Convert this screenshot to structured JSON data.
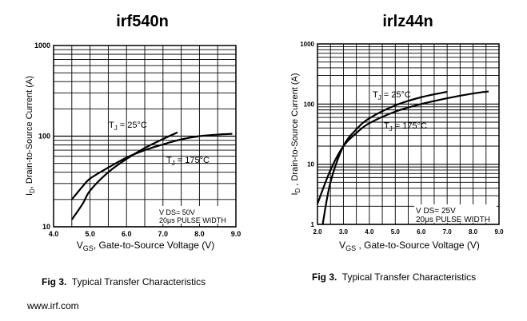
{
  "chart_data": [
    {
      "type": "line",
      "title": "irf540n",
      "xlabel_main": "V",
      "xlabel_sub": "GS",
      "xlabel_rest": ", Gate-to-Source Voltage (V)",
      "ylabel_main": "I",
      "ylabel_sub": "D",
      "ylabel_rest": ",  Drain-to-Source Current (A)",
      "x_scale": "linear",
      "y_scale": "log",
      "xlim": [
        4.0,
        9.0
      ],
      "ylim": [
        10,
        1000
      ],
      "x_ticks": [
        4.0,
        5.0,
        6.0,
        7.0,
        8.0,
        9.0
      ],
      "x_tick_labels": [
        "4.0",
        "5.0",
        "6.0",
        "7.0",
        "8.0",
        "9.0"
      ],
      "y_tick_labels": [
        "10",
        "100",
        "1000"
      ],
      "grid": true,
      "series": [
        {
          "name": "T",
          "name_sub": "J",
          "name_rest": " = 25°C",
          "x": [
            4.5,
            4.8,
            5.0,
            5.5,
            6.0,
            6.5,
            7.0,
            7.4
          ],
          "y": [
            12,
            18,
            25,
            40,
            56,
            74,
            93,
            110
          ]
        },
        {
          "name": "T",
          "name_sub": "J",
          "name_rest": " = 175°C",
          "x": [
            4.5,
            4.8,
            5.0,
            5.5,
            6.0,
            6.5,
            7.0,
            7.5,
            8.0,
            8.5,
            8.9
          ],
          "y": [
            20,
            28,
            34,
            45,
            58,
            70,
            81,
            92,
            100,
            104,
            106
          ]
        }
      ],
      "conditions": [
        "V DS= 50V",
        "20μs PULSE WIDTH"
      ],
      "caption_bold": "Fig 3.",
      "caption_text": "Typical Transfer Characteristics"
    },
    {
      "type": "line",
      "title": "irlz44n",
      "xlabel_main": "V",
      "xlabel_sub": "GS",
      "xlabel_rest": " , Gate-to-Source Voltage (V)",
      "ylabel_main": "I",
      "ylabel_sub": "D",
      "ylabel_rest": " ,  Drain-to-Source Current (A)",
      "x_scale": "linear",
      "y_scale": "log",
      "xlim": [
        2.0,
        9.0
      ],
      "ylim": [
        1,
        1000
      ],
      "x_ticks": [
        2.0,
        3.0,
        4.0,
        5.0,
        6.0,
        7.0,
        8.0,
        9.0
      ],
      "x_tick_labels": [
        "2.0",
        "3.0",
        "4.0",
        "5.0",
        "6.0",
        "7.0",
        "8.0",
        "9.0"
      ],
      "y_tick_labels": [
        "1",
        "10",
        "100",
        "1000"
      ],
      "grid": true,
      "series": [
        {
          "name": "T",
          "name_sub": "J",
          "name_rest": " = 25°C",
          "x": [
            2.2,
            2.5,
            3.0,
            3.5,
            4.0,
            5.0,
            6.0,
            7.0
          ],
          "y": [
            1,
            5,
            20,
            38,
            58,
            95,
            130,
            160
          ]
        },
        {
          "name": "T",
          "name_sub": "J",
          "name_rest": " = 175°C",
          "x": [
            2.0,
            2.5,
            3.0,
            3.5,
            4.0,
            5.0,
            6.0,
            7.0,
            8.0,
            8.6
          ],
          "y": [
            2.2,
            8,
            20,
            33,
            48,
            75,
            100,
            125,
            150,
            162
          ]
        }
      ],
      "conditions": [
        "V DS= 25V",
        "20μs PULSE WIDTH"
      ],
      "caption_bold": "Fig 3.",
      "caption_text": "Typical Transfer Characteristics"
    }
  ],
  "footer": {
    "website": "www.irf.com"
  }
}
